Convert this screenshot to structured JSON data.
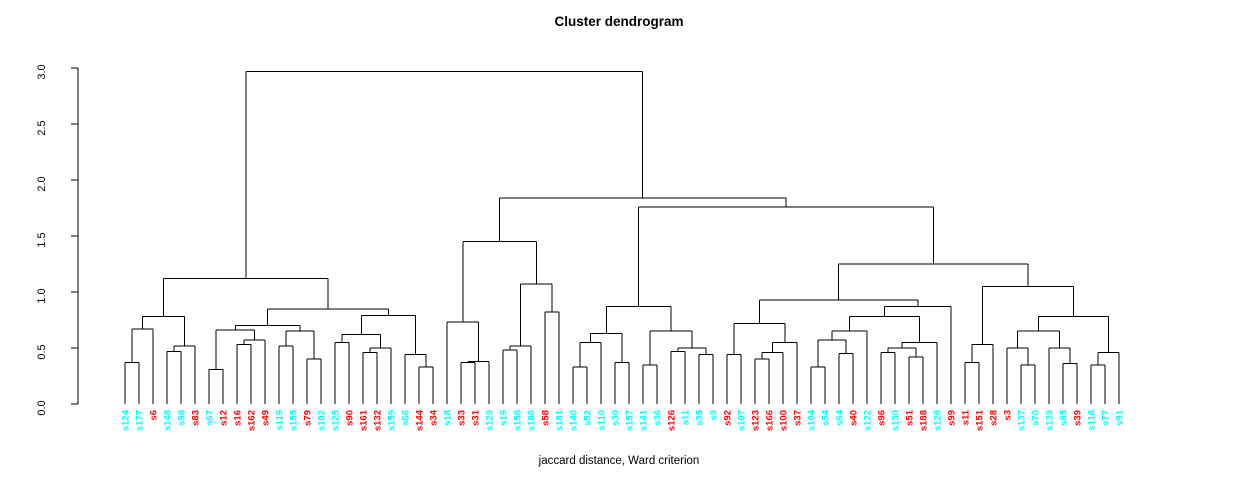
{
  "title": "Cluster dendrogram",
  "caption": "jaccard distance, Ward criterion",
  "chart_data": {
    "type": "dendrogram",
    "title": "Cluster dendrogram",
    "xlabel": "jaccard distance, Ward criterion",
    "ylabel": "",
    "ylim": [
      0,
      3
    ],
    "yticks": [
      "0.0",
      "0.5",
      "1.0",
      "1.5",
      "2.0",
      "2.5",
      "3.0"
    ],
    "grid": false,
    "leaf_colors": {
      "red": "#FF0000",
      "cyan": "#00FFFF"
    },
    "leaves": [
      [
        "s124",
        "cyan"
      ],
      [
        "s177",
        "cyan"
      ],
      [
        "s6",
        "red"
      ],
      [
        "s148",
        "cyan"
      ],
      [
        "s98",
        "cyan"
      ],
      [
        "s83",
        "red"
      ],
      [
        "s67",
        "cyan"
      ],
      [
        "s12",
        "red"
      ],
      [
        "s16",
        "red"
      ],
      [
        "s162",
        "red"
      ],
      [
        "s49",
        "red"
      ],
      [
        "s119",
        "cyan"
      ],
      [
        "s155",
        "cyan"
      ],
      [
        "s79",
        "red"
      ],
      [
        "s102",
        "cyan"
      ],
      [
        "s125",
        "cyan"
      ],
      [
        "s90",
        "red"
      ],
      [
        "s161",
        "red"
      ],
      [
        "s132",
        "red"
      ],
      [
        "s159",
        "cyan"
      ],
      [
        "s66",
        "cyan"
      ],
      [
        "s144",
        "red"
      ],
      [
        "s34",
        "red"
      ],
      [
        "s18",
        "cyan"
      ],
      [
        "s33",
        "red"
      ],
      [
        "s31",
        "red"
      ],
      [
        "s129",
        "cyan"
      ],
      [
        "s19",
        "cyan"
      ],
      [
        "s158",
        "cyan"
      ],
      [
        "s180",
        "cyan"
      ],
      [
        "s58",
        "red"
      ],
      [
        "s181",
        "cyan"
      ],
      [
        "s140",
        "cyan"
      ],
      [
        "s52",
        "cyan"
      ],
      [
        "s110",
        "cyan"
      ],
      [
        "s30",
        "cyan"
      ],
      [
        "s157",
        "cyan"
      ],
      [
        "s141",
        "cyan"
      ],
      [
        "s36",
        "cyan"
      ],
      [
        "s126",
        "red"
      ],
      [
        "s11",
        "cyan"
      ],
      [
        "s35",
        "cyan"
      ],
      [
        "s9",
        "cyan"
      ],
      [
        "s92",
        "red"
      ],
      [
        "s107",
        "cyan"
      ],
      [
        "s123",
        "red"
      ],
      [
        "s166",
        "red"
      ],
      [
        "s100",
        "red"
      ],
      [
        "s37",
        "red"
      ],
      [
        "s104",
        "cyan"
      ],
      [
        "s54",
        "cyan"
      ],
      [
        "s64",
        "cyan"
      ],
      [
        "s40",
        "red"
      ],
      [
        "s122",
        "cyan"
      ],
      [
        "s96",
        "red"
      ],
      [
        "s130",
        "cyan"
      ],
      [
        "s51",
        "red"
      ],
      [
        "s188",
        "red"
      ],
      [
        "s128",
        "cyan"
      ],
      [
        "s99",
        "red"
      ],
      [
        "s11",
        "red"
      ],
      [
        "s151",
        "red"
      ],
      [
        "s28",
        "red"
      ],
      [
        "s3",
        "red"
      ],
      [
        "s137",
        "cyan"
      ],
      [
        "s70",
        "cyan"
      ],
      [
        "s139",
        "cyan"
      ],
      [
        "s85",
        "cyan"
      ],
      [
        "s39",
        "red"
      ],
      [
        "s118",
        "cyan"
      ],
      [
        "s77",
        "cyan"
      ],
      [
        "s91",
        "cyan"
      ]
    ],
    "tree": [
      2.97,
      [
        1.12,
        [
          0.78,
          [
            0.67,
            [
              0.37,
              0,
              1
            ],
            2
          ],
          [
            0.52,
            [
              0.47,
              3,
              4
            ],
            5
          ]
        ],
        [
          0.85,
          [
            0.7,
            [
              0.66,
              [
                0.31,
                6,
                7
              ],
              [
                0.57,
                [
                  0.53,
                  8,
                  9
                ],
                10
              ]
            ],
            [
              0.65,
              [
                0.52,
                11,
                12
              ],
              [
                0.4,
                13,
                14
              ]
            ]
          ],
          [
            0.79,
            [
              0.62,
              [
                0.55,
                15,
                16
              ],
              [
                0.5,
                [
                  0.46,
                  17,
                  18
                ],
                19
              ]
            ],
            [
              0.44,
              20,
              [
                0.33,
                21,
                22
              ]
            ]
          ]
        ]
      ],
      [
        1.84,
        [
          1.45,
          [
            0.73,
            23,
            [
              0.38,
              [
                0.37,
                24,
                25
              ],
              26
            ]
          ],
          [
            1.07,
            [
              0.52,
              [
                0.48,
                27,
                28
              ],
              29
            ],
            [
              0.82,
              30,
              31
            ]
          ]
        ],
        [
          1.76,
          [
            0.87,
            [
              0.63,
              [
                0.55,
                [
                  0.33,
                  32,
                  33
                ],
                34
              ],
              [
                0.37,
                35,
                36
              ]
            ],
            [
              0.65,
              [
                0.35,
                37,
                38
              ],
              [
                0.5,
                [
                  0.47,
                  39,
                  40
                ],
                [
                  0.44,
                  41,
                  42
                ]
              ]
            ]
          ],
          [
            1.25,
            [
              0.93,
              [
                0.72,
                [
                  0.44,
                  43,
                  44
                ],
                [
                  0.55,
                  [
                    0.46,
                    [
                      0.4,
                      45,
                      46
                    ],
                    47
                  ],
                  48
                ]
              ],
              [
                0.87,
                [
                  0.78,
                  [
                    0.65,
                    [
                      0.57,
                      [
                        0.33,
                        49,
                        50
                      ],
                      [
                        0.45,
                        51,
                        52
                      ]
                    ],
                    53
                  ],
                  [
                    0.55,
                    [
                      0.5,
                      [
                        0.46,
                        54,
                        55
                      ],
                      [
                        0.42,
                        56,
                        57
                      ]
                    ],
                    58
                  ]
                ],
                59
              ]
            ],
            [
              1.05,
              [
                0.53,
                [
                  0.37,
                  60,
                  61
                ],
                62
              ],
              [
                0.78,
                [
                  0.65,
                  [
                    0.5,
                    63,
                    [
                      0.35,
                      64,
                      65
                    ]
                  ],
                  [
                    0.5,
                    66,
                    [
                      0.36,
                      67,
                      68
                    ]
                  ]
                ],
                [
                  0.46,
                  [
                    0.35,
                    69,
                    70
                  ],
                  71
                ]
              ]
            ]
          ]
        ]
      ]
    ]
  }
}
